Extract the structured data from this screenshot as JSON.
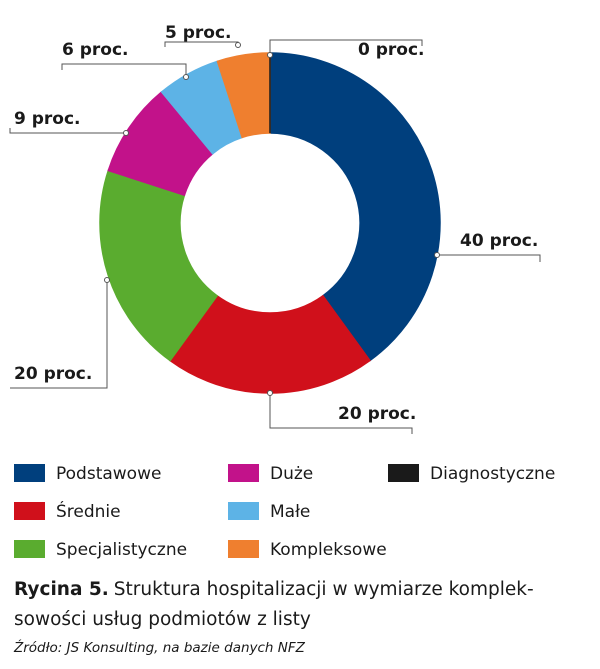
{
  "chart_data": {
    "type": "donut",
    "categories": [
      "Podstawowe",
      "Średnie",
      "Specjalistyczne",
      "Duże",
      "Małe",
      "Kompleksowe",
      "Diagnostyczne"
    ],
    "values": [
      40,
      20,
      20,
      9,
      6,
      5,
      0
    ],
    "value_labels": [
      "40 proc.",
      "20 proc.",
      "20 proc.",
      "9 proc.",
      "6 proc.",
      "5 proc.",
      "0 proc."
    ],
    "colors": [
      "#003f7d",
      "#d0101b",
      "#5aac2f",
      "#c2128a",
      "#5db3e6",
      "#ef7f2f",
      "#1a1a1a"
    ],
    "caption_label": "Rycina 5.",
    "caption_lines": [
      "Struktura hospitalizacji w wymiarze komplek-",
      "sowości usług podmiotów z listy"
    ],
    "source": "Źródło: JS Konsulting, na bazie danych NFZ"
  }
}
